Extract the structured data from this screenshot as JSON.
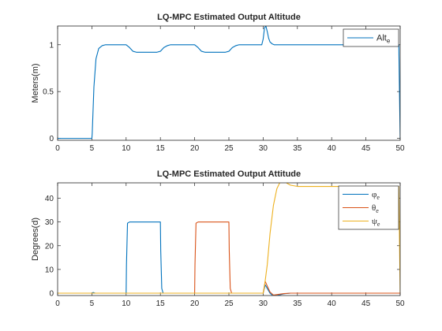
{
  "chart_data": [
    {
      "type": "line",
      "title": "LQ-MPC Estimated Output Altitude",
      "xlabel": "",
      "ylabel": "Meters(m)",
      "xlim": [
        0,
        50
      ],
      "ylim": [
        -0.02,
        1.2
      ],
      "x_ticks": [
        0,
        5,
        10,
        15,
        20,
        25,
        30,
        35,
        40,
        45,
        50
      ],
      "y_ticks": [
        0,
        0.5,
        1
      ],
      "y_tick_labels": [
        "0",
        "0.5",
        "1"
      ],
      "legend": {
        "position": "top-right"
      },
      "series": [
        {
          "name": "Alt_e",
          "legend_main": "Alt",
          "legend_sub": "e",
          "color": "#0072BD",
          "x": [
            0,
            5.0,
            5.05,
            5.3,
            5.6,
            6.0,
            6.5,
            7.0,
            8.0,
            10.0,
            10.5,
            11.0,
            11.5,
            12.5,
            14.5,
            15.0,
            15.5,
            16.0,
            16.5,
            18.0,
            20.0,
            20.5,
            21.0,
            21.5,
            22.5,
            24.5,
            25.0,
            25.5,
            26.0,
            26.5,
            28.0,
            29.8,
            30.0,
            30.2,
            30.4,
            30.6,
            30.8,
            31.0,
            31.3,
            31.6,
            32.0,
            32.5,
            33.0,
            34.0,
            35.0,
            40.0,
            45.0,
            49.8,
            50.0
          ],
          "y": [
            0,
            0,
            0.05,
            0.55,
            0.85,
            0.96,
            0.99,
            1.0,
            1.0,
            1.0,
            0.97,
            0.93,
            0.92,
            0.92,
            0.92,
            0.93,
            0.97,
            0.99,
            1.0,
            1.0,
            1.0,
            0.97,
            0.93,
            0.92,
            0.92,
            0.92,
            0.93,
            0.97,
            0.99,
            1.0,
            1.0,
            1.0,
            1.06,
            1.18,
            1.2,
            1.14,
            1.07,
            1.03,
            1.01,
            1.0,
            1.0,
            1.0,
            1.0,
            1.0,
            1.0,
            1.0,
            1.0,
            1.0,
            0.0
          ]
        }
      ]
    },
    {
      "type": "line",
      "title": "LQ-MPC Estimated Output Attitude",
      "xlabel": "",
      "ylabel": "Degrees(d)",
      "xlim": [
        0,
        50
      ],
      "ylim": [
        -1,
        46.5
      ],
      "x_ticks": [
        0,
        5,
        10,
        15,
        20,
        25,
        30,
        35,
        40,
        45,
        50
      ],
      "y_ticks": [
        0,
        10,
        20,
        30,
        40
      ],
      "y_tick_labels": [
        "0",
        "10",
        "20",
        "30",
        "40"
      ],
      "legend": {
        "position": "top-right"
      },
      "series": [
        {
          "name": "φ_e",
          "legend_main": "φ",
          "legend_sub": "e",
          "color": "#0072BD",
          "x": [
            0,
            5.0,
            5.2,
            5.5,
            10.0,
            10.05,
            10.2,
            10.5,
            15.0,
            15.05,
            15.2,
            15.4,
            20.0,
            30.0,
            30.3,
            30.6,
            31.0,
            31.5,
            32.0,
            33.0,
            34.0,
            40.0,
            50.0
          ],
          "y": [
            0,
            0,
            0.3,
            0,
            0,
            12,
            29.5,
            30,
            30,
            18,
            2,
            0,
            0,
            0,
            3.5,
            2.0,
            0,
            -1.3,
            -1.0,
            -0.3,
            0,
            0,
            0
          ]
        },
        {
          "name": "θ_e",
          "legend_main": "θ",
          "legend_sub": "e",
          "color": "#D95319",
          "x": [
            0,
            20.0,
            20.05,
            20.2,
            20.5,
            25.0,
            25.05,
            25.2,
            25.4,
            30.0,
            30.3,
            30.6,
            31.0,
            31.5,
            32.0,
            33.0,
            34.0,
            40.0,
            50.0
          ],
          "y": [
            0,
            0,
            12,
            29.5,
            30,
            30,
            18,
            2,
            0,
            0,
            5.0,
            3.0,
            0.5,
            -0.8,
            -0.6,
            -0.2,
            0,
            0,
            0
          ]
        },
        {
          "name": "ψ_e",
          "legend_main": "ψ",
          "legend_sub": "e",
          "color": "#EDB120",
          "x": [
            0,
            30.0,
            30.2,
            30.6,
            31.0,
            31.5,
            32.0,
            32.5,
            33.0,
            33.5,
            34.0,
            35.0,
            40.0,
            49.8,
            50.0
          ],
          "y": [
            0,
            0,
            3,
            12,
            25,
            37,
            44,
            47,
            47.5,
            46.3,
            45.5,
            45,
            45,
            45,
            0
          ]
        }
      ]
    }
  ]
}
